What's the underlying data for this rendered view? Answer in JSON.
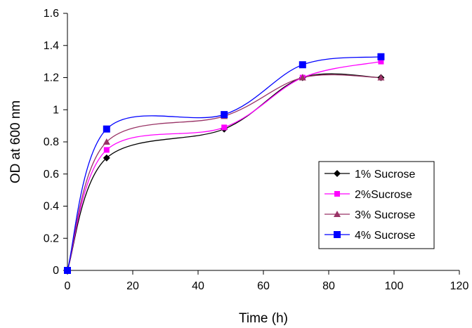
{
  "chart_data": {
    "type": "line",
    "title": "",
    "xlabel": "Time (h)",
    "ylabel": "OD at 600 nm",
    "xlim": [
      0,
      120
    ],
    "ylim": [
      0,
      1.6
    ],
    "x_ticks": [
      "0",
      "20",
      "40",
      "60",
      "80",
      "100",
      "120"
    ],
    "y_ticks": [
      "0",
      "0.2",
      "0.4",
      "0.6",
      "0.8",
      "1",
      "1.2",
      "1.4",
      "1.6"
    ],
    "grid": false,
    "legend_position": "bottom-right",
    "series": [
      {
        "name": "1% Sucrose",
        "color": "#000000",
        "marker": "diamond",
        "x": [
          0,
          12,
          48,
          72,
          96
        ],
        "y": [
          0,
          0.7,
          0.88,
          1.2,
          1.2
        ]
      },
      {
        "name": "2%Sucrose",
        "color": "#ff00ff",
        "marker": "square",
        "x": [
          0,
          12,
          48,
          72,
          96
        ],
        "y": [
          0,
          0.75,
          0.89,
          1.2,
          1.3
        ]
      },
      {
        "name": "3% Sucrose",
        "color": "#993366",
        "marker": "triangle",
        "x": [
          0,
          12,
          48,
          72,
          96
        ],
        "y": [
          0,
          0.8,
          0.96,
          1.2,
          1.2
        ]
      },
      {
        "name": "4% Sucrose",
        "color": "#0000ff",
        "marker": "square",
        "x": [
          0,
          12,
          48,
          72,
          96
        ],
        "y": [
          0,
          0.88,
          0.97,
          1.28,
          1.33
        ]
      }
    ]
  }
}
